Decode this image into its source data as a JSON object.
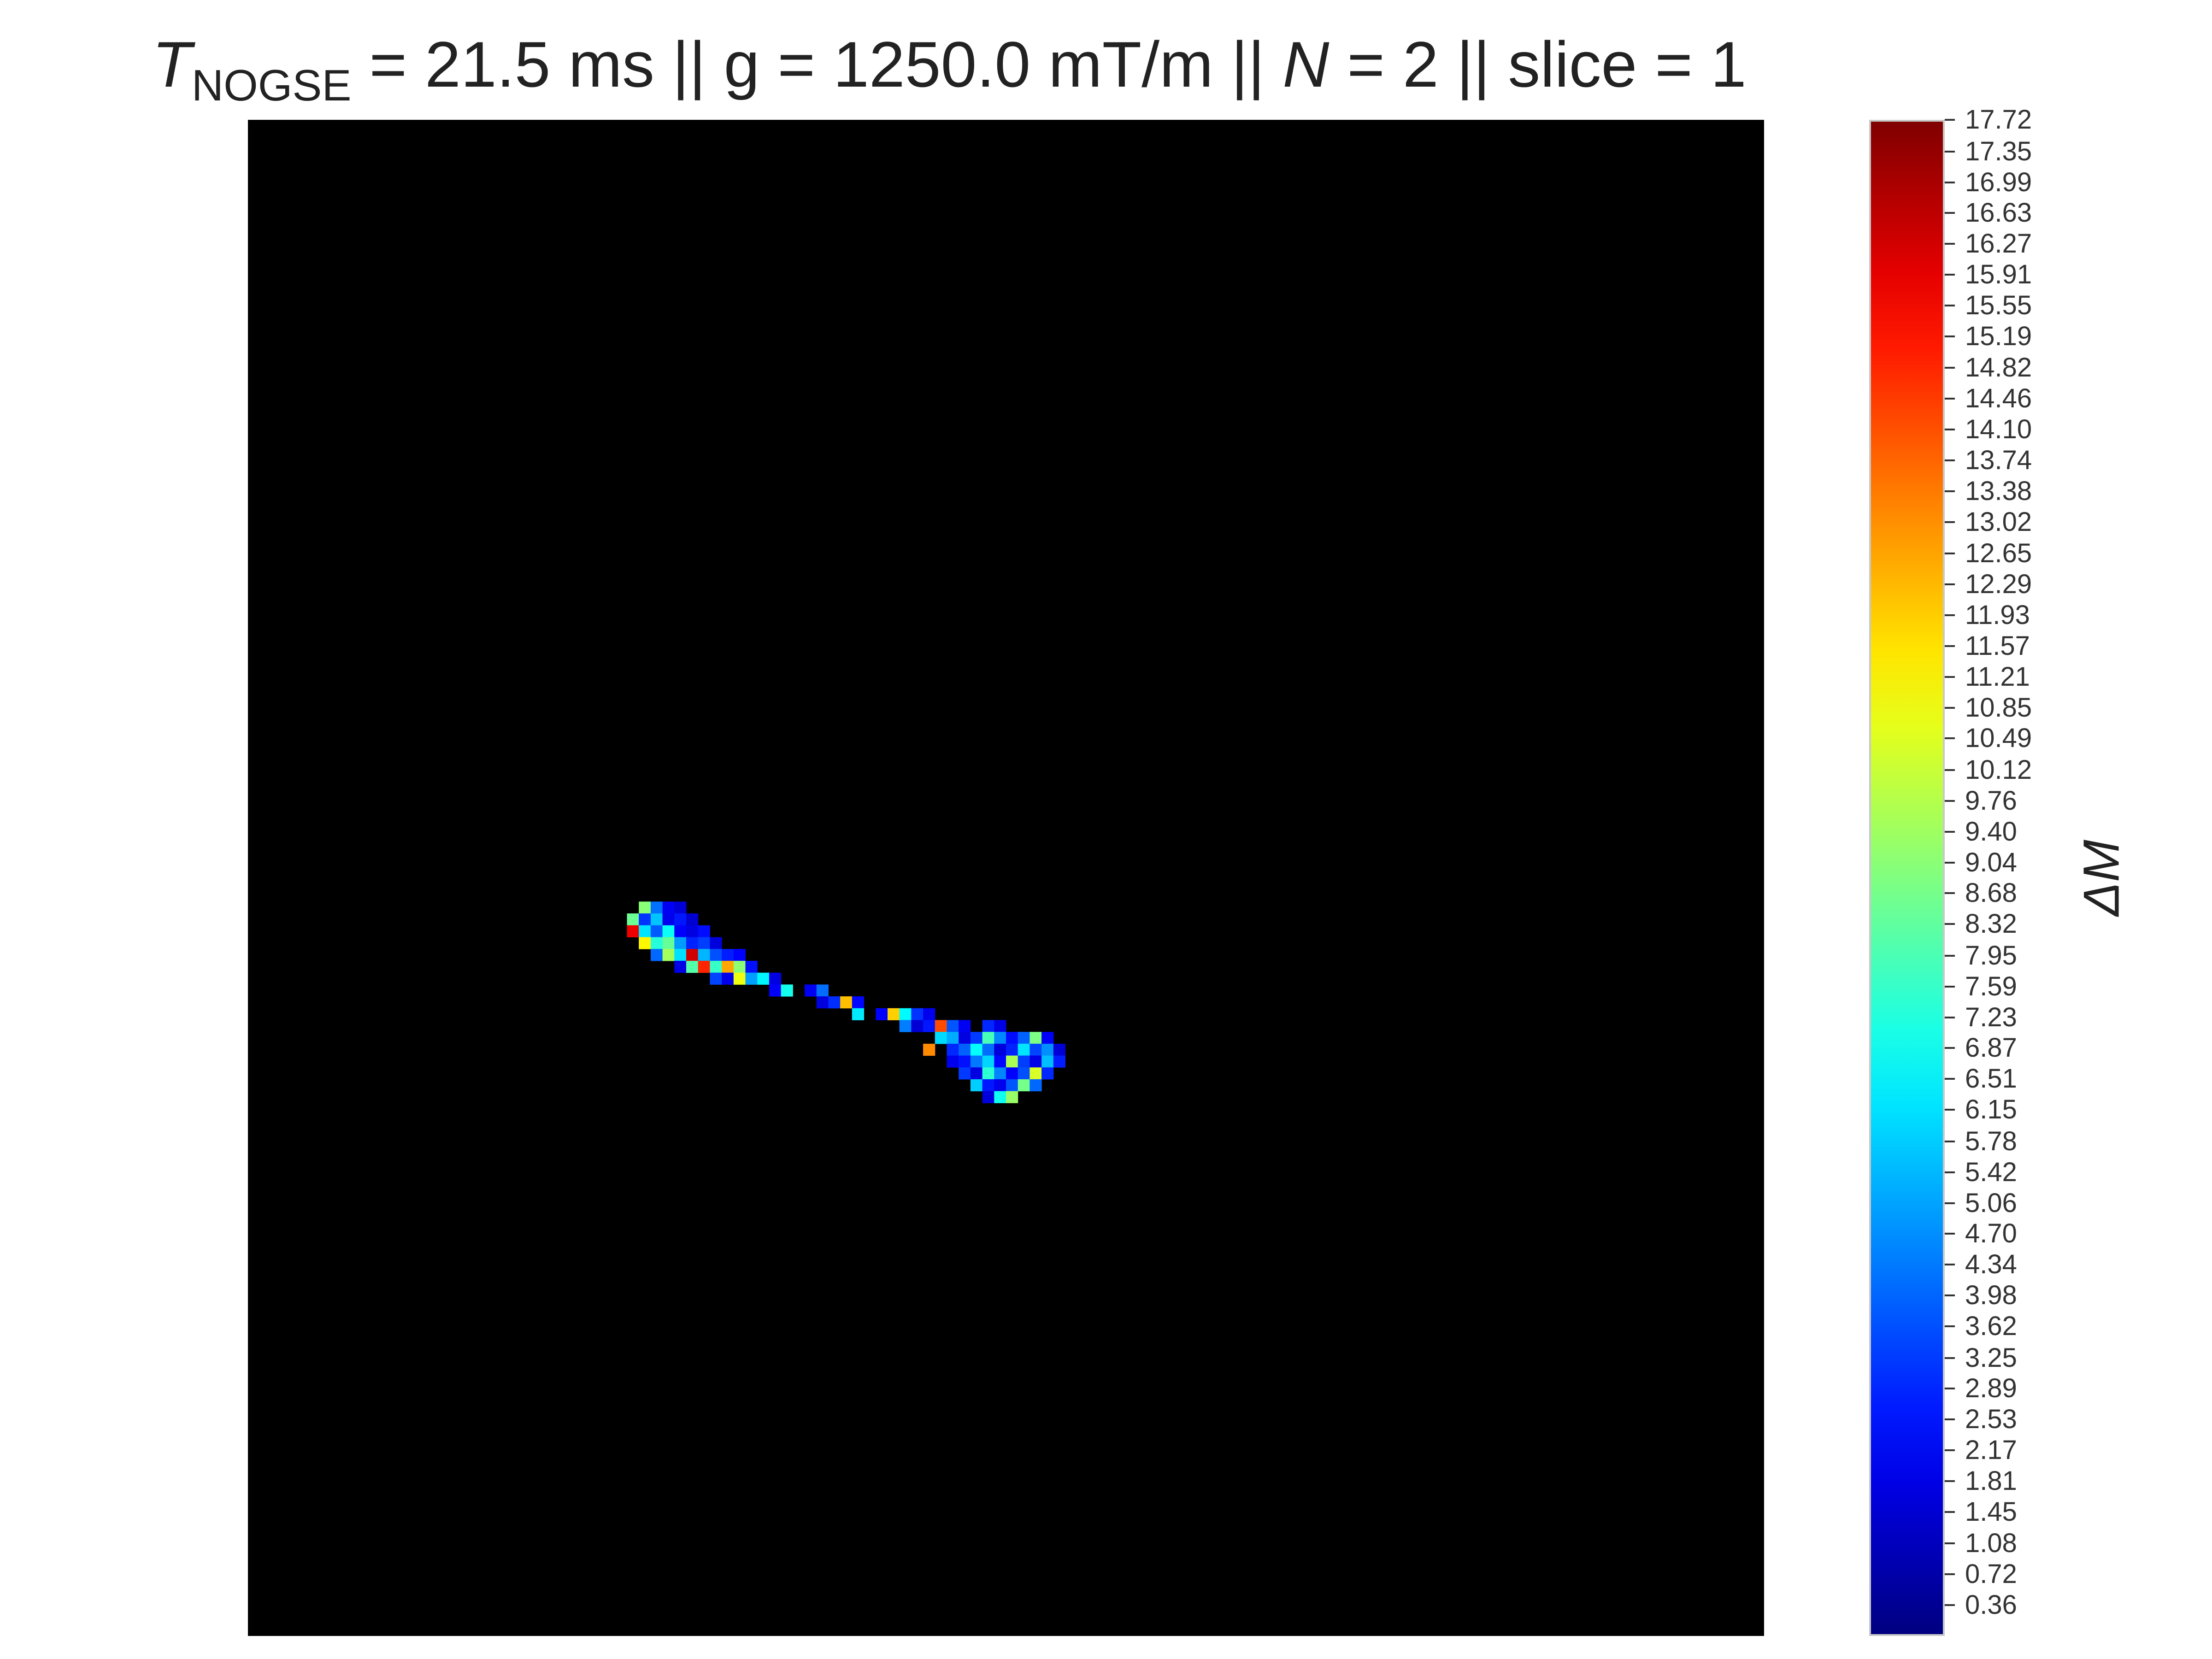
{
  "title": {
    "t_symbol": "T",
    "t_subscript": "NOGSE",
    "t_value": " = 21.5 ms  ||  g = 1250.0 mT/m || ",
    "n_symbol": "N",
    "n_value": " = 2 || slice = 1"
  },
  "chart_data": {
    "type": "heatmap",
    "colormap": "jet",
    "background_color": "#000000",
    "colorbar": {
      "label": "ΔM",
      "min": 0.0,
      "max": 17.72,
      "ticks": [
        "17.72",
        "17.35",
        "16.99",
        "16.63",
        "16.27",
        "15.91",
        "15.55",
        "15.19",
        "14.82",
        "14.46",
        "14.10",
        "13.74",
        "13.38",
        "13.02",
        "12.65",
        "12.29",
        "11.93",
        "11.57",
        "11.21",
        "10.85",
        "10.49",
        "10.12",
        "9.76",
        "9.40",
        "9.04",
        "8.68",
        "8.32",
        "7.95",
        "7.59",
        "7.23",
        "6.87",
        "6.51",
        "6.15",
        "5.78",
        "5.42",
        "5.06",
        "4.70",
        "4.34",
        "3.98",
        "3.62",
        "3.25",
        "2.89",
        "2.53",
        "2.17",
        "1.81",
        "1.45",
        "1.08",
        "0.72",
        "0.36"
      ]
    },
    "grid_size": [
      128,
      128
    ],
    "cells": [
      [
        33,
        66,
        9.0
      ],
      [
        34,
        66,
        4.2
      ],
      [
        35,
        66,
        2.0
      ],
      [
        36,
        66,
        1.5
      ],
      [
        32,
        67,
        8.5
      ],
      [
        33,
        67,
        3.1
      ],
      [
        34,
        67,
        5.6
      ],
      [
        35,
        67,
        1.9
      ],
      [
        36,
        67,
        2.6
      ],
      [
        37,
        67,
        1.4
      ],
      [
        32,
        68,
        15.8
      ],
      [
        33,
        68,
        6.2
      ],
      [
        34,
        68,
        3.8
      ],
      [
        35,
        68,
        6.8
      ],
      [
        36,
        68,
        2.2
      ],
      [
        37,
        68,
        1.7
      ],
      [
        38,
        68,
        2.4
      ],
      [
        33,
        69,
        11.2
      ],
      [
        34,
        69,
        7.3
      ],
      [
        35,
        69,
        8.4
      ],
      [
        36,
        69,
        4.9
      ],
      [
        37,
        69,
        2.8
      ],
      [
        38,
        69,
        3.3
      ],
      [
        39,
        69,
        1.6
      ],
      [
        34,
        70,
        4.0
      ],
      [
        35,
        70,
        9.5
      ],
      [
        36,
        70,
        6.1
      ],
      [
        37,
        70,
        16.3
      ],
      [
        38,
        70,
        5.4
      ],
      [
        39,
        70,
        3.6
      ],
      [
        40,
        70,
        2.7
      ],
      [
        41,
        70,
        2.2
      ],
      [
        36,
        71,
        1.8
      ],
      [
        37,
        71,
        8.1
      ],
      [
        38,
        71,
        14.9
      ],
      [
        39,
        71,
        7.6
      ],
      [
        40,
        71,
        12.6
      ],
      [
        41,
        71,
        9.1
      ],
      [
        42,
        71,
        2.5
      ],
      [
        39,
        72,
        3.4
      ],
      [
        40,
        72,
        1.9
      ],
      [
        41,
        72,
        10.8
      ],
      [
        42,
        72,
        5.0
      ],
      [
        43,
        72,
        6.5
      ],
      [
        44,
        72,
        1.7
      ],
      [
        44,
        73,
        2.1
      ],
      [
        45,
        73,
        7.0
      ],
      [
        47,
        73,
        2.0
      ],
      [
        48,
        73,
        4.1
      ],
      [
        48,
        74,
        1.6
      ],
      [
        49,
        74,
        3.0
      ],
      [
        50,
        74,
        12.2
      ],
      [
        51,
        74,
        2.3
      ],
      [
        51,
        75,
        6.3
      ],
      [
        53,
        75,
        2.2
      ],
      [
        54,
        75,
        11.9
      ],
      [
        55,
        75,
        6.6
      ],
      [
        56,
        75,
        3.1
      ],
      [
        57,
        75,
        1.9
      ],
      [
        55,
        76,
        4.4
      ],
      [
        56,
        76,
        1.5
      ],
      [
        57,
        76,
        2.6
      ],
      [
        58,
        76,
        14.2
      ],
      [
        59,
        76,
        3.7
      ],
      [
        60,
        76,
        2.0
      ],
      [
        62,
        76,
        2.9
      ],
      [
        63,
        76,
        1.8
      ],
      [
        58,
        77,
        6.0
      ],
      [
        59,
        77,
        5.2
      ],
      [
        60,
        77,
        1.7
      ],
      [
        61,
        77,
        3.2
      ],
      [
        62,
        77,
        7.9
      ],
      [
        63,
        77,
        4.6
      ],
      [
        64,
        77,
        2.4
      ],
      [
        65,
        77,
        3.9
      ],
      [
        66,
        77,
        8.8
      ],
      [
        67,
        77,
        2.1
      ],
      [
        57,
        78,
        13.1
      ],
      [
        59,
        78,
        2.9
      ],
      [
        60,
        78,
        3.9
      ],
      [
        61,
        78,
        6.7
      ],
      [
        62,
        78,
        4.1
      ],
      [
        63,
        78,
        1.6
      ],
      [
        64,
        78,
        2.8
      ],
      [
        65,
        78,
        6.2
      ],
      [
        66,
        78,
        3.4
      ],
      [
        67,
        78,
        4.7
      ],
      [
        68,
        78,
        1.5
      ],
      [
        59,
        79,
        1.9
      ],
      [
        60,
        79,
        2.5
      ],
      [
        61,
        79,
        4.3
      ],
      [
        62,
        79,
        5.9
      ],
      [
        63,
        79,
        2.3
      ],
      [
        64,
        79,
        9.6
      ],
      [
        65,
        79,
        3.3
      ],
      [
        66,
        79,
        1.8
      ],
      [
        67,
        79,
        5.5
      ],
      [
        68,
        79,
        2.7
      ],
      [
        60,
        80,
        3.2
      ],
      [
        61,
        80,
        1.7
      ],
      [
        62,
        80,
        7.4
      ],
      [
        63,
        80,
        4.5
      ],
      [
        64,
        80,
        2.2
      ],
      [
        65,
        80,
        3.6
      ],
      [
        66,
        80,
        10.4
      ],
      [
        67,
        80,
        2.9
      ],
      [
        61,
        81,
        5.8
      ],
      [
        62,
        81,
        2.6
      ],
      [
        63,
        81,
        1.9
      ],
      [
        64,
        81,
        3.7
      ],
      [
        65,
        81,
        8.7
      ],
      [
        66,
        81,
        4.0
      ],
      [
        62,
        82,
        1.6
      ],
      [
        63,
        82,
        6.9
      ],
      [
        64,
        82,
        9.3
      ]
    ]
  }
}
